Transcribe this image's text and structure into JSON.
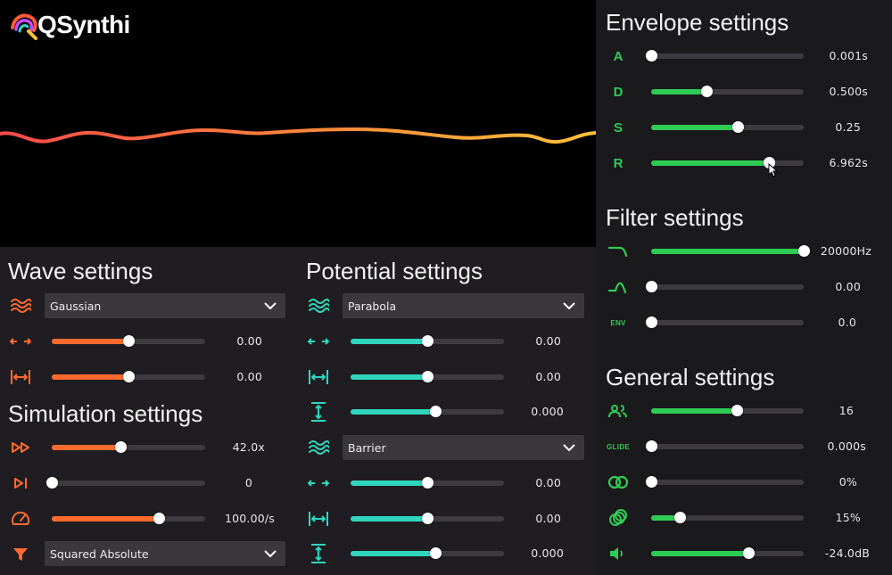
{
  "app": {
    "name": "QSynthi"
  },
  "colors": {
    "orange": "#ff6a2f",
    "teal": "#2fd6bd",
    "green": "#2ecc55"
  },
  "wave": {
    "title": "Wave settings",
    "type": "Gaussian",
    "position": "0.00",
    "width": "0.00"
  },
  "simulation": {
    "title": "Simulation settings",
    "speed": "42.0x",
    "steps": "0",
    "rate": "100.00/s",
    "display": "Squared Absolute"
  },
  "potential": {
    "title": "Potential settings",
    "type1": "Parabola",
    "p1_position": "0.00",
    "p1_width": "0.00",
    "p1_height": "0.000",
    "type2": "Barrier",
    "p2_position": "0.00",
    "p2_width": "0.00",
    "p2_height": "0.000"
  },
  "envelope": {
    "title": "Envelope settings",
    "attack_label": "A",
    "attack": "0.001s",
    "decay_label": "D",
    "decay": "0.500s",
    "sustain_label": "S",
    "sustain": "0.25",
    "release_label": "R",
    "release": "6.962s"
  },
  "filter": {
    "title": "Filter settings",
    "cutoff": "20000Hz",
    "resonance": "0.00",
    "env_label": "ENV",
    "env_amount": "0.0"
  },
  "general": {
    "title": "General settings",
    "voices": "16",
    "glide_label": "GLIDE",
    "glide": "0.000s",
    "stereo": "0%",
    "spread": "15%",
    "volume": "-24.0dB"
  },
  "sliders": {
    "wave_position": 0.5,
    "wave_width": 0.5,
    "sim_speed": 0.45,
    "sim_steps": 0.0,
    "sim_rate": 0.7,
    "p1_position": 0.5,
    "p1_width": 0.5,
    "p1_height": 0.55,
    "p2_position": 0.5,
    "p2_width": 0.5,
    "p2_height": 0.55,
    "env_attack": 0.0,
    "env_decay": 0.36,
    "env_sustain": 0.57,
    "env_release": 0.77,
    "filter_cutoff": 1.0,
    "filter_resonance": 0.0,
    "filter_env": 0.0,
    "gen_voices": 0.56,
    "gen_glide": 0.0,
    "gen_stereo": 0.0,
    "gen_spread": 0.19,
    "gen_volume": 0.64
  }
}
